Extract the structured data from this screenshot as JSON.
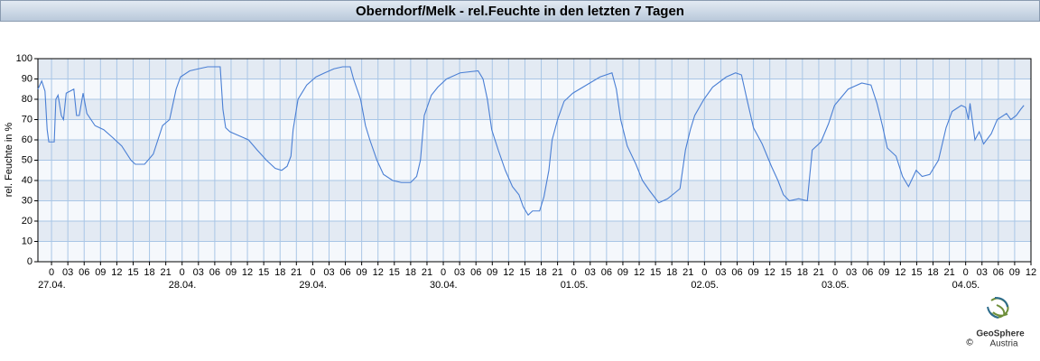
{
  "chart_data": {
    "type": "line",
    "title": "Oberndorf/Melk - rel.Feuchte in den letzten 7 Tagen",
    "y_label": "rel. Feuchte in %",
    "x": [
      -2.5,
      -1.8,
      -1.2,
      -0.8,
      -0.5,
      0.5,
      0.8,
      1.2,
      1.8,
      2.2,
      2.7,
      4.1,
      4.6,
      5.1,
      5.8,
      6.5,
      8,
      9.6,
      11.3,
      12.9,
      14.6,
      15.4,
      17.1,
      18.7,
      20.4,
      21.7,
      22.9,
      23.7,
      25.4,
      27,
      28.7,
      31,
      31.5,
      32,
      32.8,
      34.5,
      36.2,
      37.8,
      39.5,
      41.1,
      42.3,
      43.3,
      44,
      44.4,
      45.3,
      46.9,
      48.6,
      50.2,
      51.9,
      53.5,
      54.9,
      55.5,
      56.8,
      57.7,
      58.5,
      59.8,
      61,
      62.7,
      64.3,
      66,
      67.1,
      67.8,
      68.5,
      69.8,
      71,
      72.6,
      75.1,
      78.4,
      79.3,
      80.1,
      80.9,
      82.1,
      83.4,
      84.7,
      85.9,
      86.7,
      87.6,
      88.4,
      89.7,
      90.5,
      91.4,
      92,
      93,
      94.2,
      95.8,
      98.3,
      100.8,
      103,
      103.8,
      104.6,
      105.8,
      107.4,
      108.6,
      109.9,
      111.6,
      113.2,
      114.6,
      115.5,
      116.5,
      117.4,
      118.2,
      119.9,
      121.5,
      124,
      125.7,
      126.8,
      127.8,
      129,
      130.6,
      132.3,
      133.5,
      134.5,
      135.6,
      137.3,
      138.9,
      139.8,
      141.4,
      142.8,
      143.9,
      146.4,
      148.9,
      150.6,
      151.7,
      152.7,
      153.6,
      155.2,
      156.4,
      157.5,
      158.9,
      160,
      161.4,
      163,
      164.4,
      165.5,
      167.2,
      168,
      168.5,
      168.8,
      169.7,
      170.5,
      171.3,
      172.7,
      173.8,
      175.5,
      176.3,
      177.3,
      178.1,
      178.7
    ],
    "series": [
      {
        "color": "#4a7fd4",
        "values": [
          85,
          89,
          84,
          65,
          59,
          59,
          80,
          82,
          72,
          70,
          83,
          85,
          72,
          72,
          83,
          73,
          67,
          65,
          61,
          57,
          50,
          48,
          48,
          53,
          67,
          70,
          85,
          91,
          94,
          95,
          96,
          96,
          75,
          66,
          64,
          62,
          60,
          55,
          50,
          46,
          45,
          47,
          52,
          65,
          80,
          87,
          91,
          93,
          95,
          96,
          96,
          90,
          80,
          67,
          60,
          50,
          43,
          40,
          39,
          39,
          42,
          50,
          72,
          82,
          86,
          90,
          93,
          94,
          90,
          80,
          65,
          55,
          45,
          37,
          33,
          27,
          23,
          25,
          25,
          32,
          45,
          60,
          70,
          79,
          83,
          87,
          91,
          93,
          85,
          70,
          57,
          48,
          40,
          35,
          29,
          31,
          34,
          36,
          55,
          65,
          72,
          80,
          86,
          91,
          93,
          92,
          80,
          66,
          58,
          47,
          40,
          33,
          30,
          31,
          30,
          55,
          59,
          68,
          77,
          85,
          88,
          87,
          78,
          67,
          56,
          52,
          42,
          37,
          45,
          42,
          43,
          50,
          66,
          74,
          77,
          76,
          70,
          78,
          60,
          64,
          58,
          63,
          70,
          73,
          70,
          72,
          75,
          77
        ]
      }
    ],
    "xlim": [
      -2.5,
      180
    ],
    "xticks": [
      {
        "value": 0,
        "label": "0"
      },
      {
        "value": 3,
        "label": "03"
      },
      {
        "value": 6,
        "label": "06"
      },
      {
        "value": 9,
        "label": "09"
      },
      {
        "value": 12,
        "label": "12"
      },
      {
        "value": 15,
        "label": "15"
      },
      {
        "value": 18,
        "label": "18"
      },
      {
        "value": 21,
        "label": "21"
      },
      {
        "value": 24,
        "label": "0"
      },
      {
        "value": 27,
        "label": "03"
      },
      {
        "value": 30,
        "label": "06"
      },
      {
        "value": 33,
        "label": "09"
      },
      {
        "value": 36,
        "label": "12"
      },
      {
        "value": 39,
        "label": "15"
      },
      {
        "value": 42,
        "label": "18"
      },
      {
        "value": 45,
        "label": "21"
      },
      {
        "value": 48,
        "label": "0"
      },
      {
        "value": 51,
        "label": "03"
      },
      {
        "value": 54,
        "label": "06"
      },
      {
        "value": 57,
        "label": "09"
      },
      {
        "value": 60,
        "label": "12"
      },
      {
        "value": 63,
        "label": "15"
      },
      {
        "value": 66,
        "label": "18"
      },
      {
        "value": 69,
        "label": "21"
      },
      {
        "value": 72,
        "label": "0"
      },
      {
        "value": 75,
        "label": "03"
      },
      {
        "value": 78,
        "label": "06"
      },
      {
        "value": 81,
        "label": "09"
      },
      {
        "value": 84,
        "label": "12"
      },
      {
        "value": 87,
        "label": "15"
      },
      {
        "value": 90,
        "label": "18"
      },
      {
        "value": 93,
        "label": "21"
      },
      {
        "value": 96,
        "label": "0"
      },
      {
        "value": 99,
        "label": "03"
      },
      {
        "value": 102,
        "label": "06"
      },
      {
        "value": 105,
        "label": "09"
      },
      {
        "value": 108,
        "label": "12"
      },
      {
        "value": 111,
        "label": "15"
      },
      {
        "value": 114,
        "label": "18"
      },
      {
        "value": 117,
        "label": "21"
      },
      {
        "value": 120,
        "label": "0"
      },
      {
        "value": 123,
        "label": "03"
      },
      {
        "value": 126,
        "label": "06"
      },
      {
        "value": 129,
        "label": "09"
      },
      {
        "value": 132,
        "label": "12"
      },
      {
        "value": 135,
        "label": "15"
      },
      {
        "value": 138,
        "label": "18"
      },
      {
        "value": 141,
        "label": "21"
      },
      {
        "value": 144,
        "label": "0"
      },
      {
        "value": 147,
        "label": "03"
      },
      {
        "value": 150,
        "label": "06"
      },
      {
        "value": 153,
        "label": "09"
      },
      {
        "value": 156,
        "label": "12"
      },
      {
        "value": 159,
        "label": "15"
      },
      {
        "value": 162,
        "label": "18"
      },
      {
        "value": 165,
        "label": "21"
      },
      {
        "value": 168,
        "label": "0"
      },
      {
        "value": 171,
        "label": "03"
      },
      {
        "value": 174,
        "label": "06"
      },
      {
        "value": 177,
        "label": "09"
      },
      {
        "value": 180,
        "label": "12"
      }
    ],
    "dates": [
      {
        "value": 0,
        "label": "27.04."
      },
      {
        "value": 24,
        "label": "28.04."
      },
      {
        "value": 48,
        "label": "29.04."
      },
      {
        "value": 72,
        "label": "30.04."
      },
      {
        "value": 96,
        "label": "01.05."
      },
      {
        "value": 120,
        "label": "02.05."
      },
      {
        "value": 144,
        "label": "03.05."
      },
      {
        "value": 168,
        "label": "04.05."
      }
    ],
    "ylim": [
      0,
      100
    ],
    "yticks": [
      0,
      10,
      20,
      30,
      40,
      50,
      60,
      70,
      80,
      90,
      100
    ],
    "grid": true
  },
  "logo": {
    "name": "GeoSphere",
    "sub": "Austria",
    "copyright": "©"
  }
}
